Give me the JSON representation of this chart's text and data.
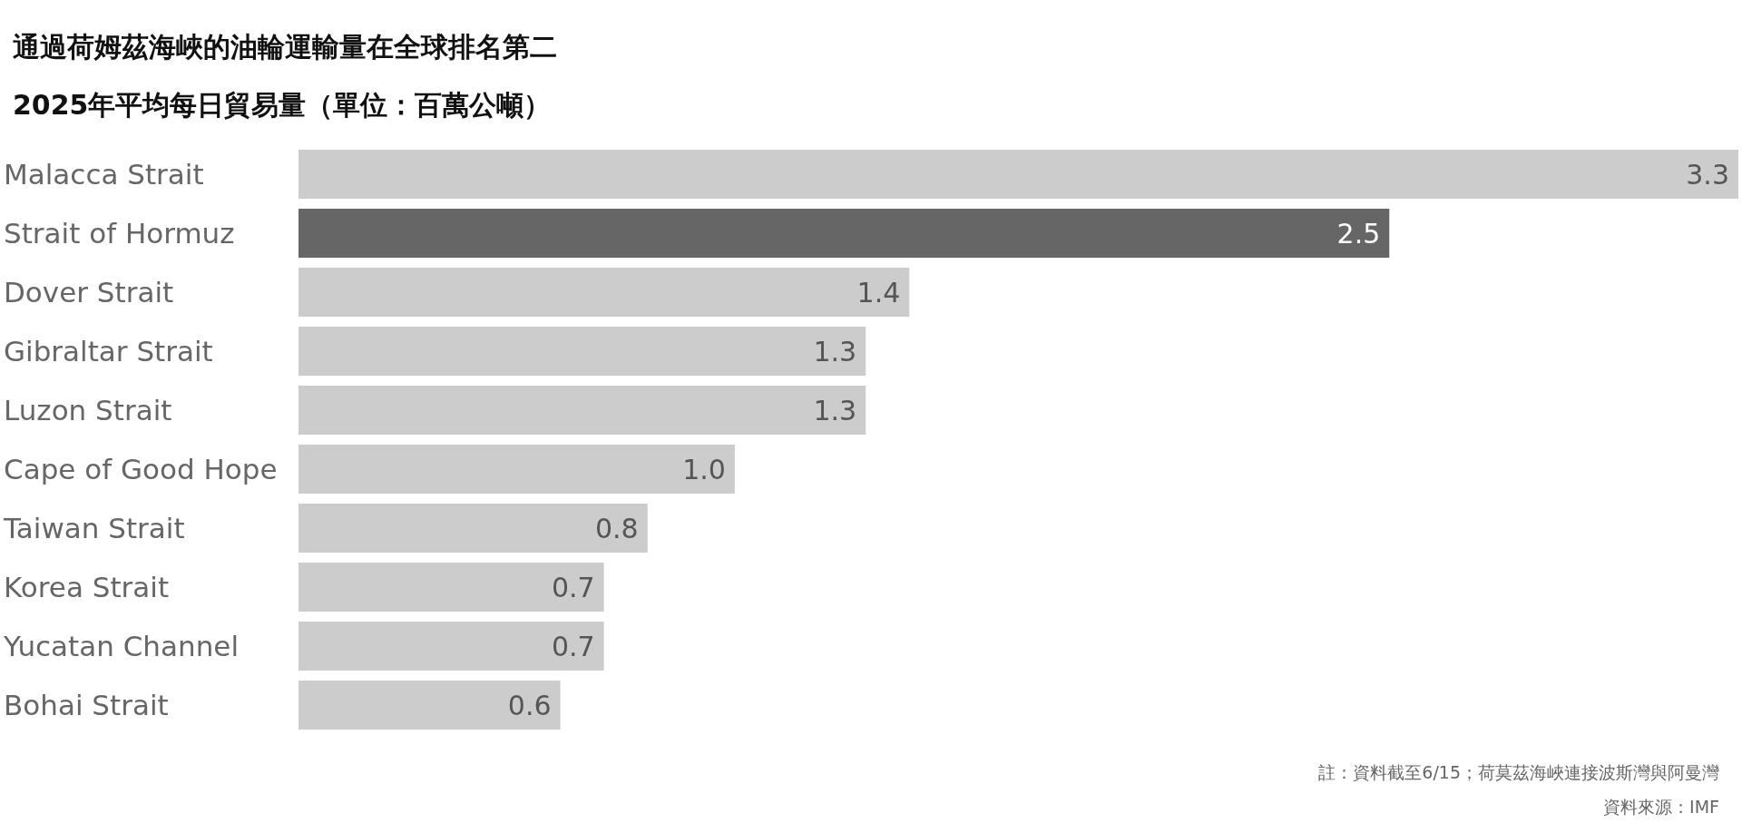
{
  "chart_data": {
    "type": "bar",
    "orientation": "horizontal",
    "title": "通過荷姆茲海峽的油輪運輸量在全球排名第二",
    "subtitle": "2025年平均每日貿易量（單位：百萬公噸）",
    "categories": [
      "Malacca Strait",
      "Strait of Hormuz",
      "Dover Strait",
      "Gibraltar Strait",
      "Luzon Strait",
      "Cape of Good Hope",
      "Taiwan Strait",
      "Korea Strait",
      "Yucatan Channel",
      "Bohai Strait"
    ],
    "values": [
      3.3,
      2.5,
      1.4,
      1.3,
      1.3,
      1.0,
      0.8,
      0.7,
      0.7,
      0.6
    ],
    "colors": [
      "#cccccc",
      "#666666",
      "#cccccc",
      "#cccccc",
      "#cccccc",
      "#cccccc",
      "#cccccc",
      "#cccccc",
      "#cccccc",
      "#cccccc"
    ],
    "value_labels": [
      "3.3",
      "2.5",
      "1.4",
      "1.3",
      "1.3",
      "1.0",
      "0.8",
      "0.7",
      "0.7",
      "0.6"
    ],
    "annotations": [
      "註：資料截至6/15；荷莫茲海峽連接波斯灣與阿曼灣",
      "資料來源：IMF"
    ]
  }
}
